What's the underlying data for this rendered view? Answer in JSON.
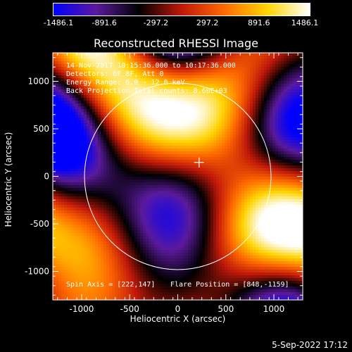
{
  "colors": {
    "colormap": [
      "#0000ff",
      "#5b1a9c",
      "#000000",
      "#c0180a",
      "#ff6a00",
      "#ffd400",
      "#ffffff"
    ],
    "axes": "#ffffff",
    "limb": "#ffffff"
  },
  "colorbar": {
    "ticks": [
      "-1486.1",
      "-891.6",
      "-297.2",
      "297.2",
      "891.6",
      "1486.1"
    ],
    "range": [
      -1486.1,
      1486.1
    ]
  },
  "overlay": {
    "line1": "14-Nov-2017 10:15:36.000 to 10:17:36.000",
    "line2": "Detectors: 6F 8F, Att 0",
    "line3": "Energy Range: 6.0 - 12.0 keV",
    "line4": "Back Projection   Total counts: 8.60E+03",
    "spin_axis": "Spin Axis = [222,147]",
    "flare_position": "Flare Position = [848,-1159]"
  },
  "timestamp": "5-Sep-2022 17:12",
  "chart_data": {
    "type": "heatmap",
    "title": "Reconstructed RHESSI Image",
    "xlabel": "Heliocentric X (arcsec)",
    "ylabel": "Heliocentric Y (arcsec)",
    "xlim": [
      -1300,
      1300
    ],
    "ylim": [
      -1300,
      1300
    ],
    "xticks": [
      -1000,
      -500,
      0,
      500,
      1000
    ],
    "yticks": [
      -1000,
      -500,
      0,
      500,
      1000
    ],
    "xtick_labels": [
      "-1000",
      "-500",
      "0",
      "500",
      "1000"
    ],
    "ytick_labels": [
      "-1000",
      "-500",
      "0",
      "500",
      "1000"
    ],
    "value_range": [
      -1486.1,
      1486.1
    ],
    "solar_limb": {
      "center": [
        0,
        0
      ],
      "radius": 970
    },
    "marker": {
      "shape": "cross",
      "position": [
        222,
        147
      ]
    }
  }
}
